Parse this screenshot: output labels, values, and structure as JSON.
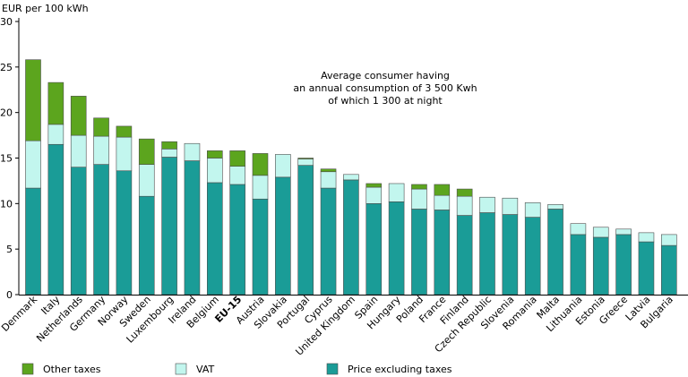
{
  "chart_data": {
    "type": "bar",
    "stacked": true,
    "ylabel": "EUR per 100 kWh",
    "ylim": [
      0,
      30
    ],
    "yticks": [
      0,
      5,
      10,
      15,
      20,
      25,
      30
    ],
    "grid": false,
    "legend_position": "bottom",
    "annotation": [
      "Average consumer having",
      "an annual consumption of 3 500 Kwh",
      "of which 1 300 at night"
    ],
    "categories": [
      "Denmark",
      "Italy",
      "Netherlands",
      "Germany",
      "Norway",
      "Sweden",
      "Luxembourg",
      "Ireland",
      "Belgium",
      "EU-15",
      "Austria",
      "Slovakia",
      "Portugal",
      "Cyprus",
      "United Kingdom",
      "Spain",
      "Hungary",
      "Poland",
      "France",
      "Finland",
      "Czech Republic",
      "Slovenia",
      "Romania",
      "Malta",
      "Lithuania",
      "Estonia",
      "Greece",
      "Latvia",
      "Bulgaria"
    ],
    "bold_categories": [
      "EU-15"
    ],
    "series": [
      {
        "name": "Price excluding taxes",
        "color": "#1a9c97",
        "values": [
          11.7,
          16.5,
          14.0,
          14.3,
          13.6,
          10.8,
          15.1,
          14.7,
          12.3,
          12.1,
          10.5,
          12.9,
          14.2,
          11.7,
          12.6,
          10.0,
          10.2,
          9.4,
          9.3,
          8.7,
          9.0,
          8.8,
          8.5,
          9.4,
          6.6,
          6.3,
          6.6,
          5.8,
          5.4
        ]
      },
      {
        "name": "VAT",
        "color": "#c2f6ee",
        "values": [
          5.2,
          2.2,
          3.5,
          3.1,
          3.7,
          3.5,
          0.9,
          1.9,
          2.7,
          2.0,
          2.6,
          2.5,
          0.7,
          1.8,
          0.6,
          1.8,
          2.0,
          2.2,
          1.6,
          2.1,
          1.7,
          1.8,
          1.6,
          0.5,
          1.2,
          1.1,
          0.6,
          1.0,
          1.2
        ]
      },
      {
        "name": "Other taxes",
        "color": "#5ca51e",
        "values": [
          8.9,
          4.6,
          4.3,
          2.0,
          1.2,
          2.8,
          0.8,
          0.0,
          0.8,
          1.7,
          2.4,
          0.0,
          0.1,
          0.3,
          0.0,
          0.4,
          0.0,
          0.5,
          1.2,
          0.8,
          0.0,
          0.0,
          0.0,
          0.0,
          0.0,
          0.0,
          0.0,
          0.0,
          0.0
        ]
      }
    ],
    "legend_order": [
      "Other taxes",
      "VAT",
      "Price excluding taxes"
    ]
  }
}
